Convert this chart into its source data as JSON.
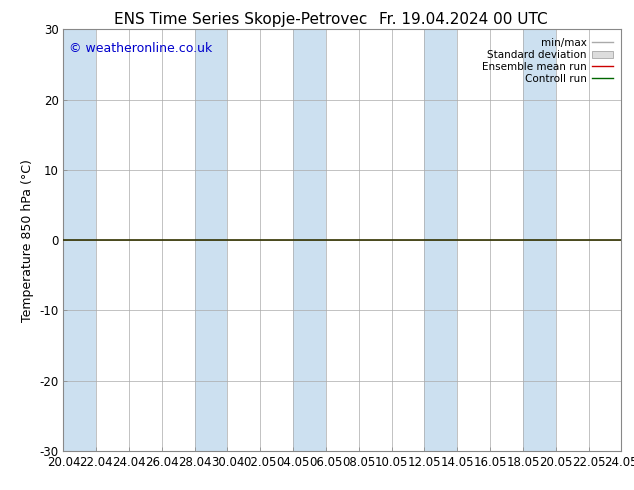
{
  "title": "ENS Time Series Skopje-Petrovec",
  "title_right": "Fr. 19.04.2024 00 UTC",
  "ylabel": "Temperature 850 hPa (°C)",
  "ylim": [
    -30,
    30
  ],
  "yticks": [
    -30,
    -20,
    -10,
    0,
    10,
    20,
    30
  ],
  "watermark": "© weatheronline.co.uk",
  "watermark_color": "#0000cc",
  "background_color": "#ffffff",
  "plot_bg_color": "#ffffff",
  "band_color": "#cce0f0",
  "zero_line_color": "#333300",
  "legend_items": [
    {
      "label": "min/max",
      "color": "#aaaaaa",
      "type": "line"
    },
    {
      "label": "Standard deviation",
      "color": "#cccccc",
      "type": "box"
    },
    {
      "label": "Ensemble mean run",
      "color": "#cc0000",
      "type": "line"
    },
    {
      "label": "Controll run",
      "color": "#006600",
      "type": "line"
    }
  ],
  "x_tick_labels": [
    "20.04",
    "22.04",
    "24.04",
    "26.04",
    "28.04",
    "30.04",
    "02.05",
    "04.05",
    "06.05",
    "08.05",
    "10.05",
    "12.05",
    "14.05",
    "16.05",
    "18.05",
    "20.05",
    "22.05",
    "24.05"
  ],
  "blue_band_indices": [
    0,
    4,
    7,
    11,
    14
  ],
  "title_fontsize": 11,
  "axis_fontsize": 9,
  "tick_fontsize": 8.5,
  "watermark_fontsize": 9
}
